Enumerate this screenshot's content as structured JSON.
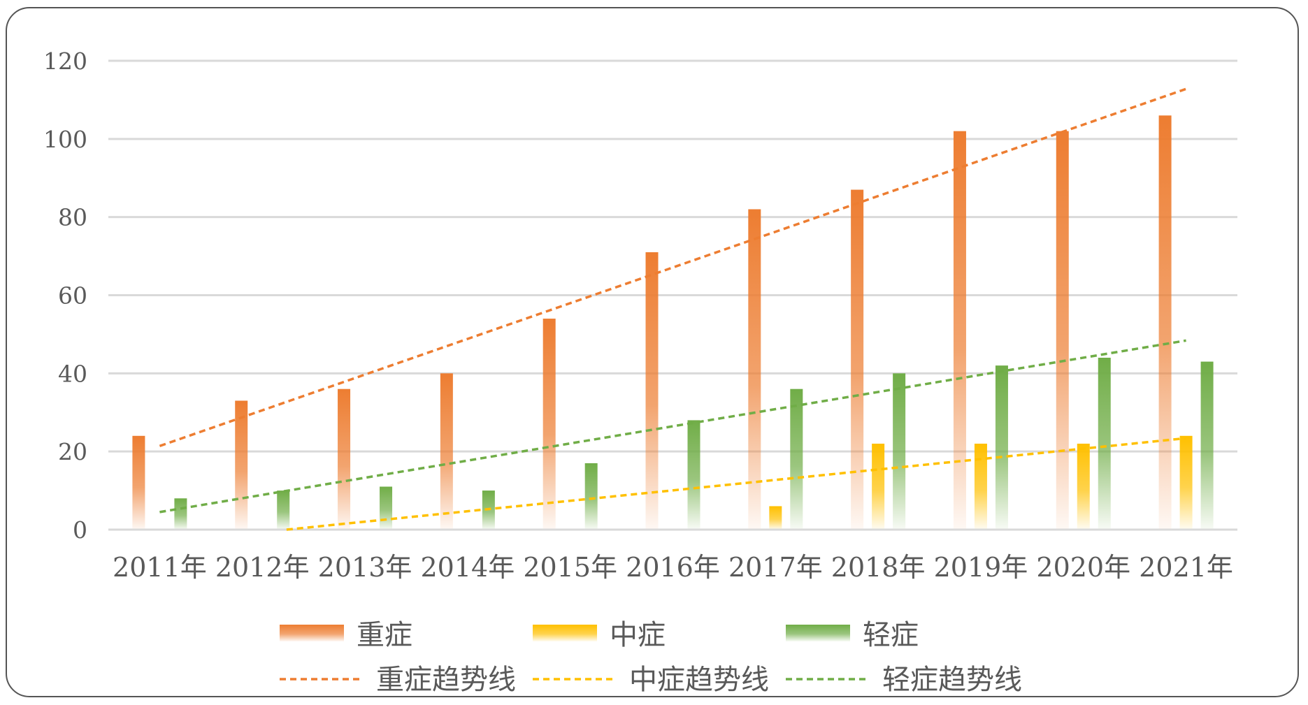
{
  "chart_data": {
    "type": "bar",
    "categories": [
      "2011年",
      "2012年",
      "2013年",
      "2014年",
      "2015年",
      "2016年",
      "2017年",
      "2018年",
      "2019年",
      "2020年",
      "2021年"
    ],
    "series": [
      {
        "name": "重症",
        "color": "#ED7D31",
        "values": [
          24,
          33,
          36,
          40,
          54,
          71,
          82,
          87,
          102,
          102,
          106
        ]
      },
      {
        "name": "中症",
        "color": "#FFC000",
        "values": [
          0,
          0,
          0,
          0,
          0,
          0,
          6,
          22,
          22,
          22,
          24
        ]
      },
      {
        "name": "轻症",
        "color": "#70AD47",
        "values": [
          8,
          10,
          11,
          10,
          17,
          28,
          36,
          40,
          42,
          44,
          43
        ]
      }
    ],
    "trendlines": [
      {
        "name": "重症趋势线",
        "series": "重症",
        "color": "#ED7D31",
        "style": "dashed",
        "start": 21.4,
        "end": 112.8
      },
      {
        "name": "中症趋势线",
        "series": "中症",
        "color": "#FFC000",
        "style": "dashed",
        "start": -3.3,
        "end": 23.4
      },
      {
        "name": "轻症趋势线",
        "series": "轻症",
        "color": "#70AD47",
        "style": "dashed",
        "start": 4.5,
        "end": 48.4
      }
    ],
    "ylim": [
      0,
      120
    ],
    "yticks": [
      "0",
      "20",
      "40",
      "60",
      "80",
      "100",
      "120"
    ],
    "grid": true,
    "legend_position": "bottom"
  }
}
